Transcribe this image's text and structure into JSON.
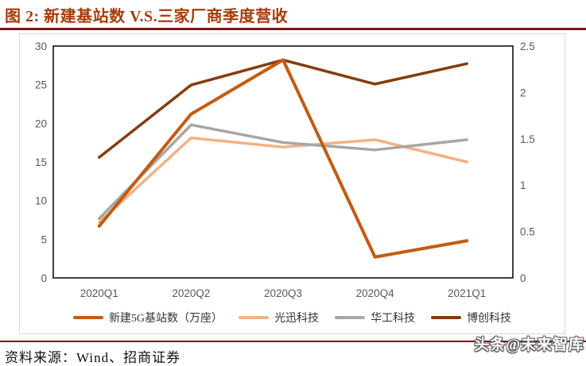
{
  "header": {
    "title": "图 2:  新建基站数 V.S.三家厂商季度营收"
  },
  "chart_data": {
    "type": "line",
    "categories": [
      "2020Q1",
      "2020Q2",
      "2020Q3",
      "2020Q4",
      "2021Q1"
    ],
    "series": [
      {
        "name": "新建5G基站数（万座）",
        "axis": "left",
        "color": "#C55A11",
        "values": [
          6.7,
          21.2,
          28.2,
          2.7,
          4.8
        ]
      },
      {
        "name": "光迅科技",
        "axis": "right",
        "color": "#F4B183",
        "values": [
          0.6,
          1.51,
          1.41,
          1.49,
          1.25
        ]
      },
      {
        "name": "华工科技",
        "axis": "right",
        "color": "#A6A6A6",
        "values": [
          0.64,
          1.65,
          1.46,
          1.38,
          1.49
        ]
      },
      {
        "name": "博创科技",
        "axis": "right",
        "color": "#843C0C",
        "values": [
          1.3,
          2.08,
          2.35,
          2.09,
          2.31
        ]
      }
    ],
    "left_axis": {
      "min": 0,
      "max": 30,
      "ticks": [
        0,
        5,
        10,
        15,
        20,
        25,
        30
      ]
    },
    "right_axis": {
      "min": 0,
      "max": 2.5,
      "ticks": [
        0,
        0.5,
        1,
        1.5,
        2,
        2.5
      ]
    },
    "grid": false,
    "legend_position": "bottom",
    "plot_border_color": "#000000"
  },
  "footer": {
    "source": "资料来源：Wind、招商证券",
    "watermark": "头条@未来智库"
  },
  "colors": {
    "title_text": "#A83C0C",
    "divider": "#7F1316",
    "axis_label": "#595959",
    "box_border": "#D9D9D9"
  }
}
